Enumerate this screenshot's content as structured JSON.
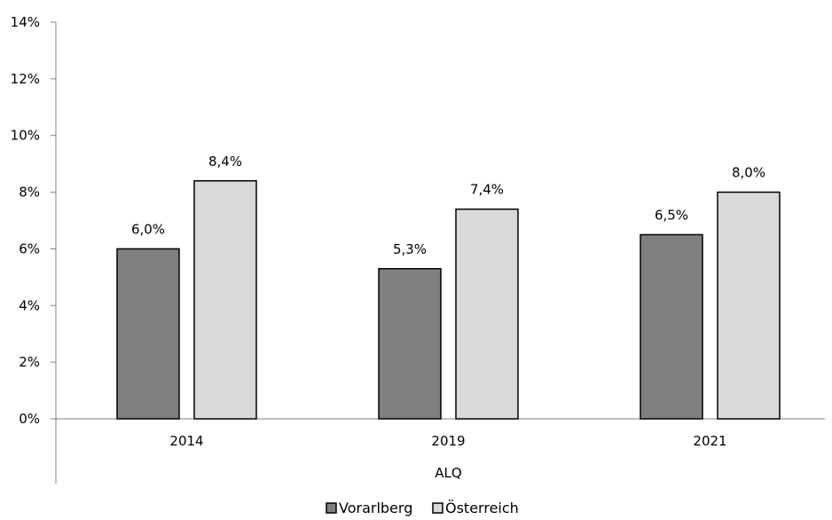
{
  "chart_data": {
    "type": "bar",
    "title": "",
    "xlabel": "ALQ",
    "ylabel": "",
    "categories": [
      "2014",
      "2019",
      "2021"
    ],
    "series": [
      {
        "name": "Vorarlberg",
        "color": "#7f7f7f",
        "values": [
          6.0,
          5.3,
          6.5
        ],
        "labels": [
          "6,0%",
          "5,3%",
          "6,5%"
        ]
      },
      {
        "name": "Österreich",
        "color": "#d9d9d9",
        "values": [
          8.4,
          7.4,
          8.0
        ],
        "labels": [
          "8,4%",
          "7,4%",
          "8,0%"
        ]
      }
    ],
    "ylim": [
      0,
      14
    ],
    "yticks": [
      0,
      2,
      4,
      6,
      8,
      10,
      12,
      14
    ],
    "ytick_labels": [
      "0%",
      "2%",
      "4%",
      "6%",
      "8%",
      "10%",
      "12%",
      "14%"
    ],
    "grid": false,
    "legend_position": "bottom"
  }
}
